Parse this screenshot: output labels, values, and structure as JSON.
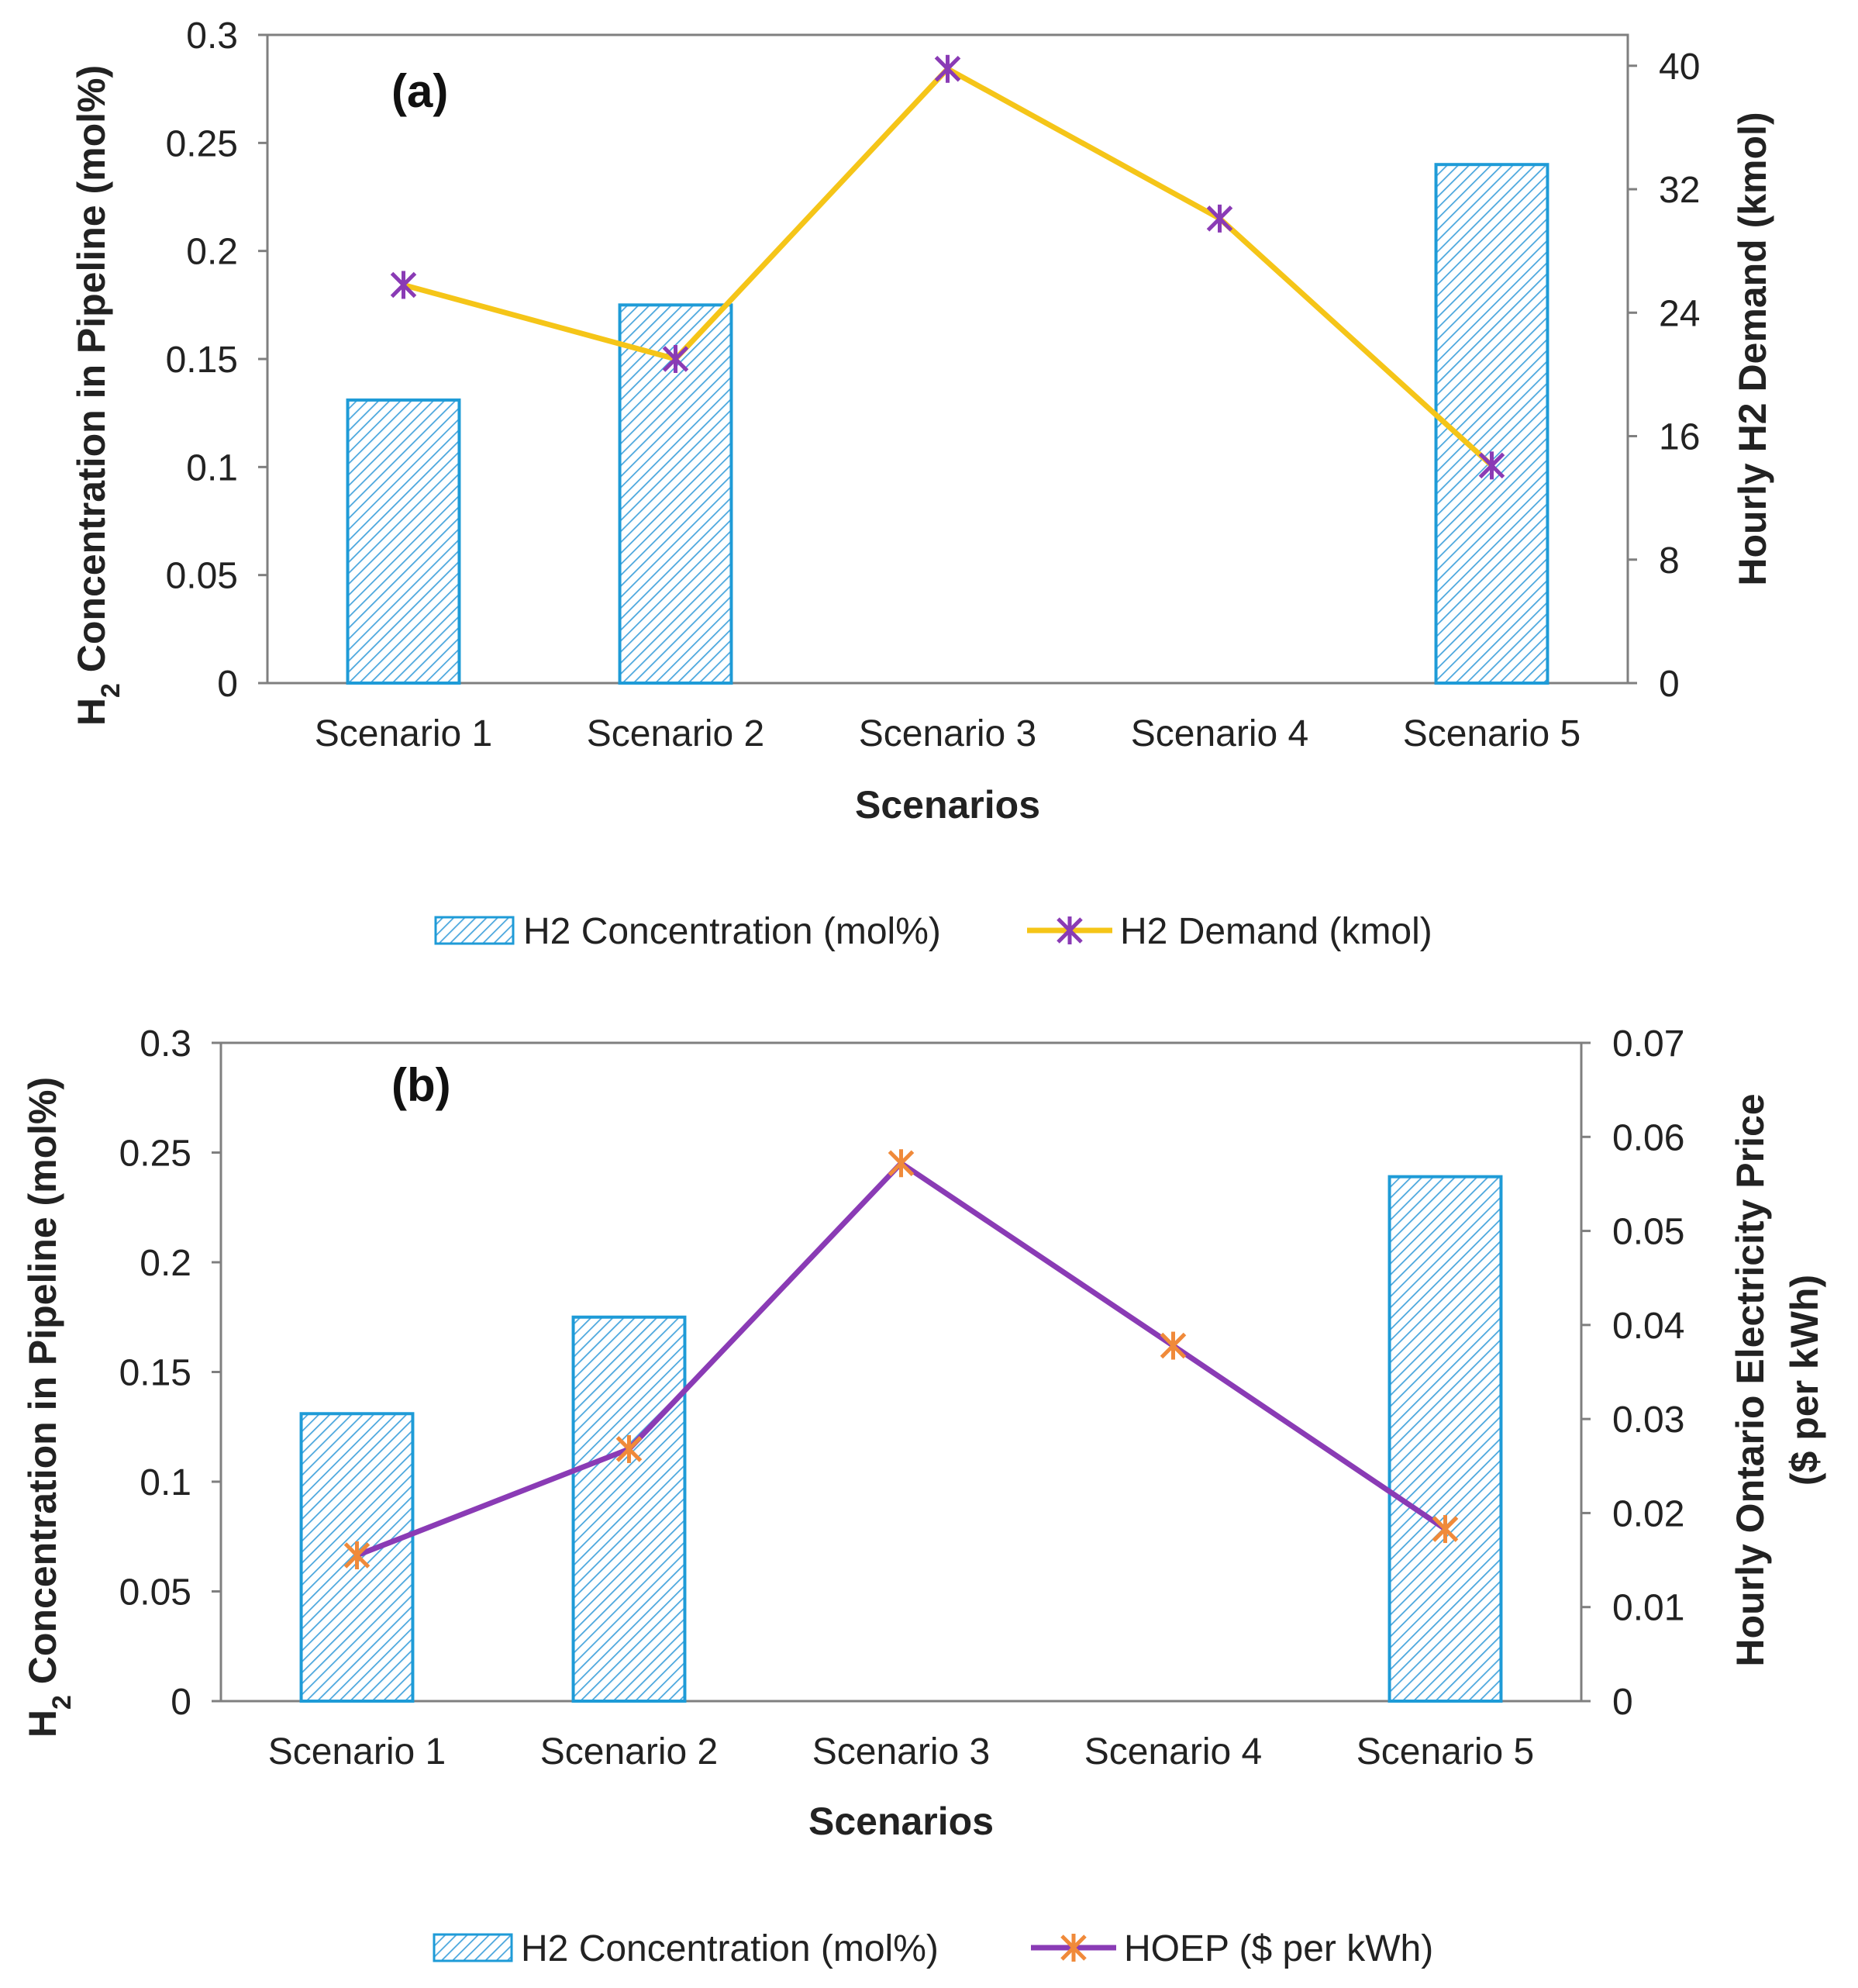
{
  "chart_data": [
    {
      "type": "bar",
      "panel_label": "(a)",
      "categories": [
        "Scenario 1",
        "Scenario 2",
        "Scenario 3",
        "Scenario 4",
        "Scenario 5"
      ],
      "xlabel": "Scenarios",
      "ylabel": {
        "prefix": "H",
        "subscript": "2",
        "suffix": " Concentration in Pipeline (mol%)"
      },
      "ylim": [
        0,
        0.3
      ],
      "yticks": [
        0,
        0.05,
        0.1,
        0.15,
        0.2,
        0.25,
        0.3
      ],
      "ytick_labels": [
        "0",
        "0.05",
        "0.1",
        "0.15",
        "0.2",
        "0.25",
        "0.3"
      ],
      "y2label": [
        "Hourly  H2 Demand (kmol)"
      ],
      "y2lim": [
        0,
        42
      ],
      "y2ticks": [
        0,
        8,
        16,
        24,
        32,
        40
      ],
      "y2tick_labels": [
        "0",
        "8",
        "16",
        "24",
        "32",
        "40"
      ],
      "series": [
        {
          "name": "H2 Concentration (mol%)",
          "type": "bar",
          "axis": "left",
          "values": [
            0.131,
            0.175,
            null,
            null,
            0.24
          ]
        },
        {
          "name": "H2 Demand (kmol)",
          "type": "line",
          "axis": "right",
          "values": [
            25.8,
            21.0,
            39.8,
            30.1,
            14.1
          ]
        }
      ],
      "colors": {
        "bar_edge": "#1e9bd7",
        "bar_hatch": "#49a6dd",
        "line": "#f5c518",
        "marker": "#8a3bb5"
      },
      "legend_position": "bottom"
    },
    {
      "type": "bar",
      "panel_label": "(b)",
      "categories": [
        "Scenario 1",
        "Scenario 2",
        "Scenario 3",
        "Scenario 4",
        "Scenario 5"
      ],
      "xlabel": "Scenarios",
      "ylabel": {
        "prefix": "H",
        "subscript": "2",
        "suffix": " Concentration in Pipeline (mol%)"
      },
      "ylim": [
        0,
        0.3
      ],
      "yticks": [
        0,
        0.05,
        0.1,
        0.15,
        0.2,
        0.25,
        0.3
      ],
      "ytick_labels": [
        "0",
        "0.05",
        "0.1",
        "0.15",
        "0.2",
        "0.25",
        "0.3"
      ],
      "y2label": [
        "Hourly Ontario Electricity Price",
        "($ per kWh)"
      ],
      "y2lim": [
        0,
        0.07
      ],
      "y2ticks": [
        0,
        0.01,
        0.02,
        0.03,
        0.04,
        0.05,
        0.06,
        0.07
      ],
      "y2tick_labels": [
        "0",
        "0.01",
        "0.02",
        "0.03",
        "0.04",
        "0.05",
        "0.06",
        "0.07"
      ],
      "series": [
        {
          "name": "H2 Concentration (mol%)",
          "type": "bar",
          "axis": "left",
          "values": [
            0.131,
            0.175,
            null,
            null,
            0.239
          ]
        },
        {
          "name": "HOEP ($ per kWh)",
          "type": "line",
          "axis": "right",
          "values": [
            0.0155,
            0.0268,
            0.0572,
            0.0378,
            0.0183
          ]
        }
      ],
      "colors": {
        "bar_edge": "#1e9bd7",
        "bar_hatch": "#49a6dd",
        "line": "#8a3bb5",
        "marker": "#f08a3a"
      },
      "legend_position": "bottom"
    }
  ]
}
